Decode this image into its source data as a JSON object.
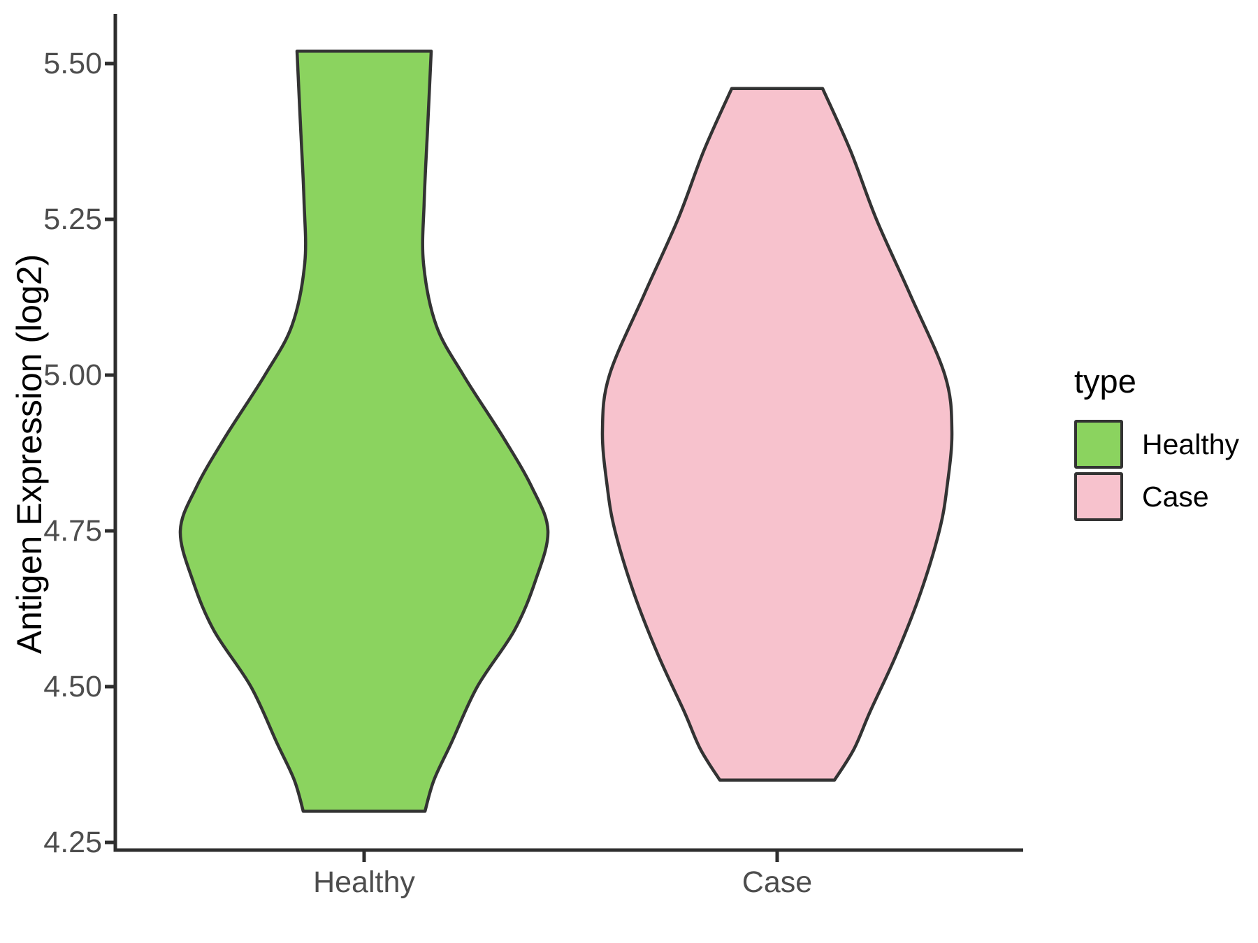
{
  "chart_data": {
    "type": "violin",
    "title": "",
    "xlabel": "",
    "ylabel": "Antigen Expression (log2)",
    "categories": [
      "Healthy",
      "Case"
    ],
    "y_axis": {
      "tick_labels": [
        "4.25",
        "4.50",
        "4.75",
        "5.00",
        "5.25",
        "5.50"
      ],
      "tick_values": [
        4.25,
        4.5,
        4.75,
        5.0,
        5.25,
        5.5
      ],
      "range": [
        4.19,
        5.58
      ],
      "grid": false
    },
    "legend": {
      "title": "type",
      "position": "right",
      "entries": [
        {
          "label": "Healthy",
          "color": "#8BD35F"
        },
        {
          "label": "Case",
          "color": "#F7C2CD"
        }
      ]
    },
    "style": {
      "outline_color": "#333333",
      "axis_color": "#2E2E2E",
      "tick_label_color": "#4D4D4D"
    },
    "series": [
      {
        "name": "Healthy",
        "color": "#8BD35F",
        "min": 4.3,
        "max": 5.52,
        "max_halfwidth_frac": 0.445,
        "profile": [
          [
            5.52,
            0.365
          ],
          [
            5.4,
            0.346
          ],
          [
            5.28,
            0.327
          ],
          [
            5.18,
            0.323
          ],
          [
            5.08,
            0.392
          ],
          [
            5.0,
            0.54
          ],
          [
            4.9,
            0.757
          ],
          [
            4.82,
            0.913
          ],
          [
            4.75,
            1.0
          ],
          [
            4.67,
            0.932
          ],
          [
            4.59,
            0.817
          ],
          [
            4.5,
            0.616
          ],
          [
            4.41,
            0.475
          ],
          [
            4.35,
            0.38
          ],
          [
            4.3,
            0.331
          ]
        ]
      },
      {
        "name": "Case",
        "color": "#F7C2CD",
        "min": 4.35,
        "max": 5.46,
        "max_halfwidth_frac": 0.423,
        "profile": [
          [
            5.46,
            0.26
          ],
          [
            5.36,
            0.42
          ],
          [
            5.25,
            0.568
          ],
          [
            5.13,
            0.76
          ],
          [
            5.0,
            0.96
          ],
          [
            4.91,
            1.0
          ],
          [
            4.82,
            0.972
          ],
          [
            4.75,
            0.928
          ],
          [
            4.65,
            0.82
          ],
          [
            4.55,
            0.68
          ],
          [
            4.46,
            0.532
          ],
          [
            4.4,
            0.44
          ],
          [
            4.35,
            0.328
          ]
        ]
      }
    ]
  }
}
